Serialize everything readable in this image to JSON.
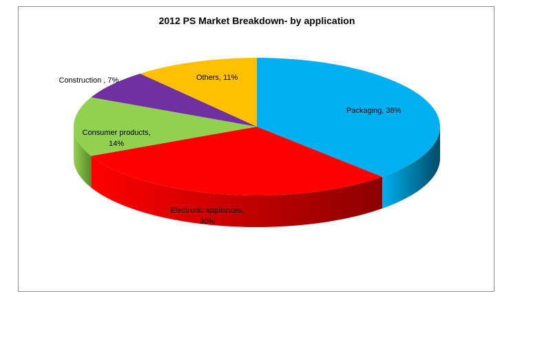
{
  "chart_data": {
    "type": "pie",
    "title": "2012 PS Market Breakdown- by application",
    "slices": [
      {
        "name": "Packaging",
        "value": 38,
        "color": "#00b0f0",
        "side": "#004b66",
        "label": [
          "Packaging, 38%"
        ]
      },
      {
        "name": "Electronic appliances",
        "value": 30,
        "color": "#ff0000",
        "side": "#8b0000",
        "label": [
          "Electronic appliances,",
          "30%"
        ]
      },
      {
        "name": "Consumer products",
        "value": 14,
        "color": "#92d050",
        "side": "#5a8a2a",
        "label": [
          "Consumer products,",
          "14%"
        ]
      },
      {
        "name": "Construction",
        "value": 7,
        "color": "#7030a0",
        "side": "#3f1a5c",
        "label": [
          "Construction , 7%"
        ]
      },
      {
        "name": "Others",
        "value": 11,
        "color": "#ffc000",
        "side": "#a67c00",
        "label": [
          "Others, 11%"
        ]
      }
    ]
  }
}
